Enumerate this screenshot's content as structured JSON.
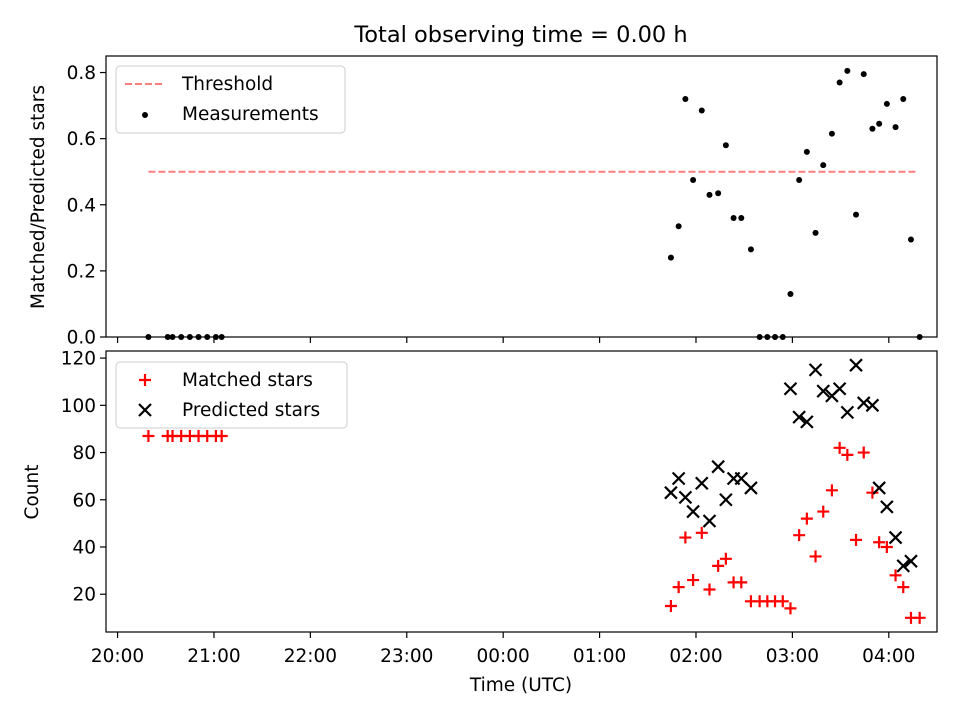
{
  "title": "Total observing time = 0.00 h",
  "x_axis": {
    "label": "Time (UTC)",
    "tick_labels": [
      "20:00",
      "21:00",
      "22:00",
      "23:00",
      "00:00",
      "01:00",
      "02:00",
      "03:00",
      "04:00"
    ]
  },
  "top_panel": {
    "ylabel": "Matched/Predicted stars",
    "legend": {
      "threshold": "Threshold",
      "measurements": "Measurements"
    }
  },
  "bottom_panel": {
    "ylabel": "Count",
    "legend": {
      "matched": "Matched stars",
      "predicted": "Predicted stars"
    }
  },
  "chart_data": [
    {
      "type": "scatter",
      "title": "Total observing time = 0.00 h",
      "xlabel": "",
      "ylabel": "Matched/Predicted stars",
      "x_unit": "hours since 20:00 UTC",
      "xlim": [
        -0.12,
        8.5
      ],
      "ylim": [
        0,
        0.85
      ],
      "yticks": [
        0.0,
        0.2,
        0.4,
        0.6,
        0.8
      ],
      "ytick_labels": [
        "0.0",
        "0.2",
        "0.4",
        "0.6",
        "0.8"
      ],
      "legend_position": "upper-left",
      "grid": false,
      "threshold": {
        "name": "Threshold",
        "y": 0.5,
        "x_start": 0.32,
        "x_end": 8.3,
        "color": "#ff7f7f",
        "style": "dashed"
      },
      "series": [
        {
          "name": "Measurements",
          "color": "#000000",
          "marker": "dot",
          "points": [
            [
              0.32,
              0.0
            ],
            [
              0.52,
              0.0
            ],
            [
              0.57,
              0.0
            ],
            [
              0.66,
              0.0
            ],
            [
              0.75,
              0.0
            ],
            [
              0.84,
              0.0
            ],
            [
              0.93,
              0.0
            ],
            [
              1.02,
              0.0
            ],
            [
              1.08,
              0.0
            ],
            [
              5.74,
              0.24
            ],
            [
              5.82,
              0.335
            ],
            [
              5.89,
              0.72
            ],
            [
              5.97,
              0.475
            ],
            [
              6.06,
              0.685
            ],
            [
              6.14,
              0.43
            ],
            [
              6.23,
              0.435
            ],
            [
              6.31,
              0.58
            ],
            [
              6.39,
              0.36
            ],
            [
              6.47,
              0.36
            ],
            [
              6.57,
              0.265
            ],
            [
              6.66,
              0.0
            ],
            [
              6.74,
              0.0
            ],
            [
              6.82,
              0.0
            ],
            [
              6.9,
              0.0
            ],
            [
              6.98,
              0.13
            ],
            [
              7.07,
              0.475
            ],
            [
              7.15,
              0.56
            ],
            [
              7.24,
              0.315
            ],
            [
              7.32,
              0.52
            ],
            [
              7.41,
              0.615
            ],
            [
              7.49,
              0.77
            ],
            [
              7.57,
              0.805
            ],
            [
              7.66,
              0.37
            ],
            [
              7.74,
              0.795
            ],
            [
              7.83,
              0.63
            ],
            [
              7.9,
              0.645
            ],
            [
              7.98,
              0.705
            ],
            [
              8.07,
              0.635
            ],
            [
              8.15,
              0.72
            ],
            [
              8.23,
              0.295
            ],
            [
              8.32,
              0.0
            ]
          ]
        }
      ]
    },
    {
      "type": "scatter",
      "xlabel": "Time (UTC)",
      "ylabel": "Count",
      "x_unit": "hours since 20:00 UTC",
      "xlim": [
        -0.12,
        8.5
      ],
      "ylim": [
        4,
        123
      ],
      "yticks": [
        20,
        40,
        60,
        80,
        100,
        120
      ],
      "ytick_labels": [
        "20",
        "40",
        "60",
        "80",
        "100",
        "120"
      ],
      "xticks": [
        0,
        1,
        2,
        3,
        4,
        5,
        6,
        7,
        8
      ],
      "xtick_labels": [
        "20:00",
        "21:00",
        "22:00",
        "23:00",
        "00:00",
        "01:00",
        "02:00",
        "03:00",
        "04:00"
      ],
      "legend_position": "upper-left",
      "grid": false,
      "series": [
        {
          "name": "Matched stars",
          "color": "#ff0000",
          "marker": "plus",
          "points": [
            [
              0.32,
              87
            ],
            [
              0.52,
              87
            ],
            [
              0.57,
              87
            ],
            [
              0.66,
              87
            ],
            [
              0.75,
              87
            ],
            [
              0.84,
              87
            ],
            [
              0.93,
              87
            ],
            [
              1.02,
              87
            ],
            [
              1.08,
              87
            ],
            [
              5.74,
              15
            ],
            [
              5.82,
              23
            ],
            [
              5.89,
              44
            ],
            [
              5.97,
              26
            ],
            [
              6.06,
              46
            ],
            [
              6.14,
              22
            ],
            [
              6.23,
              32
            ],
            [
              6.31,
              35
            ],
            [
              6.39,
              25
            ],
            [
              6.47,
              25
            ],
            [
              6.57,
              17
            ],
            [
              6.66,
              17
            ],
            [
              6.74,
              17
            ],
            [
              6.82,
              17
            ],
            [
              6.9,
              17
            ],
            [
              6.98,
              14
            ],
            [
              7.07,
              45
            ],
            [
              7.15,
              52
            ],
            [
              7.24,
              36
            ],
            [
              7.32,
              55
            ],
            [
              7.41,
              64
            ],
            [
              7.49,
              82
            ],
            [
              7.57,
              79
            ],
            [
              7.66,
              43
            ],
            [
              7.74,
              80
            ],
            [
              7.83,
              63
            ],
            [
              7.9,
              42
            ],
            [
              7.98,
              40
            ],
            [
              8.07,
              28
            ],
            [
              8.15,
              23
            ],
            [
              8.23,
              10
            ],
            [
              8.32,
              10
            ]
          ]
        },
        {
          "name": "Predicted stars",
          "color": "#000000",
          "marker": "x",
          "points": [
            [
              5.74,
              63
            ],
            [
              5.82,
              69
            ],
            [
              5.89,
              61
            ],
            [
              5.97,
              55
            ],
            [
              6.06,
              67
            ],
            [
              6.14,
              51
            ],
            [
              6.23,
              74
            ],
            [
              6.31,
              60
            ],
            [
              6.39,
              69
            ],
            [
              6.47,
              69
            ],
            [
              6.57,
              65
            ],
            [
              6.98,
              107
            ],
            [
              7.07,
              95
            ],
            [
              7.15,
              93
            ],
            [
              7.24,
              115
            ],
            [
              7.32,
              106
            ],
            [
              7.41,
              104
            ],
            [
              7.49,
              107
            ],
            [
              7.57,
              97
            ],
            [
              7.66,
              117
            ],
            [
              7.74,
              101
            ],
            [
              7.83,
              100
            ],
            [
              7.9,
              65
            ],
            [
              7.98,
              57
            ],
            [
              8.07,
              44
            ],
            [
              8.15,
              32
            ],
            [
              8.23,
              34
            ]
          ]
        }
      ]
    }
  ]
}
